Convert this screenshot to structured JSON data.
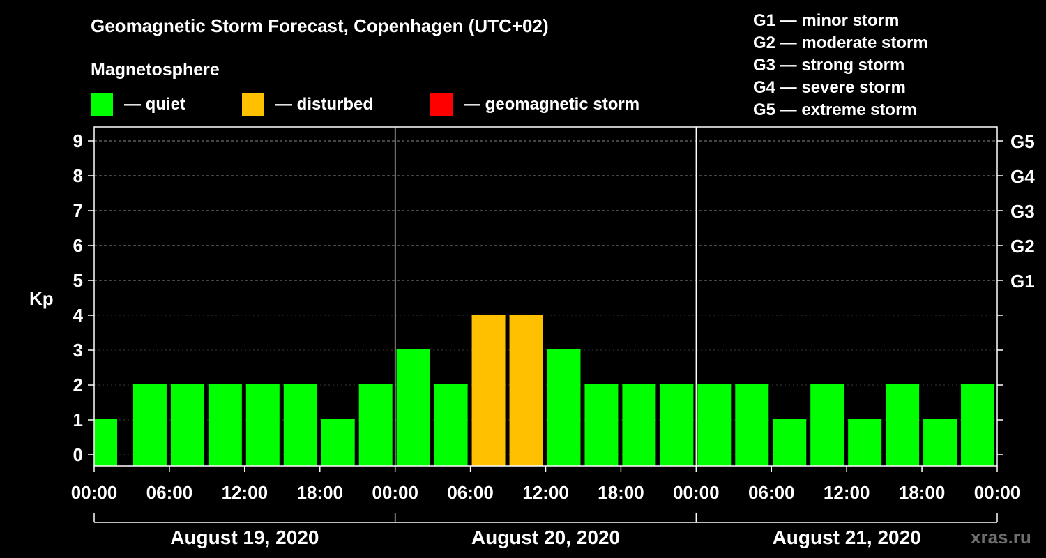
{
  "title": "Geomagnetic Storm Forecast, Copenhagen (UTC+02)",
  "subtitle": "Magnetosphere",
  "legend": [
    {
      "label": "— quiet",
      "color": "#00ff00"
    },
    {
      "label": "— disturbed",
      "color": "#ffc000"
    },
    {
      "label": "— geomagnetic storm",
      "color": "#ff0000"
    }
  ],
  "storm_levels": [
    "G1 — minor storm",
    "G2 — moderate storm",
    "G3 — strong storm",
    "G4 — severe storm",
    "G5 — extreme storm"
  ],
  "watermark": "xras.ru",
  "chart_data": {
    "type": "bar",
    "ylabel": "Kp",
    "ylim": [
      0,
      9
    ],
    "yticks": [
      0,
      1,
      2,
      3,
      4,
      5,
      6,
      7,
      8,
      9
    ],
    "right_ticks": [
      {
        "value": 5,
        "label": "G1"
      },
      {
        "value": 6,
        "label": "G2"
      },
      {
        "value": 7,
        "label": "G3"
      },
      {
        "value": 8,
        "label": "G4"
      },
      {
        "value": 9,
        "label": "G5"
      }
    ],
    "x_time_labels": [
      "00:00",
      "06:00",
      "12:00",
      "18:00",
      "00:00",
      "06:00",
      "12:00",
      "18:00",
      "00:00",
      "06:00",
      "12:00",
      "18:00",
      "00:00"
    ],
    "days": [
      "August 19, 2020",
      "August 20, 2020",
      "August 21, 2020"
    ],
    "interval_hours": 3,
    "values": [
      1,
      2,
      2,
      2,
      2,
      2,
      1,
      2,
      3,
      2,
      4,
      4,
      3,
      2,
      2,
      2,
      2,
      2,
      1,
      2,
      1,
      2,
      1,
      2,
      2
    ],
    "categories": [
      "quiet",
      "quiet",
      "quiet",
      "quiet",
      "quiet",
      "quiet",
      "quiet",
      "quiet",
      "quiet",
      "quiet",
      "disturbed",
      "disturbed",
      "quiet",
      "quiet",
      "quiet",
      "quiet",
      "quiet",
      "quiet",
      "quiet",
      "quiet",
      "quiet",
      "quiet",
      "quiet",
      "quiet",
      "quiet"
    ],
    "category_colors": {
      "quiet": "#00ff00",
      "disturbed": "#ffc000",
      "storm": "#ff0000"
    },
    "grid_dashed_from": 5
  }
}
